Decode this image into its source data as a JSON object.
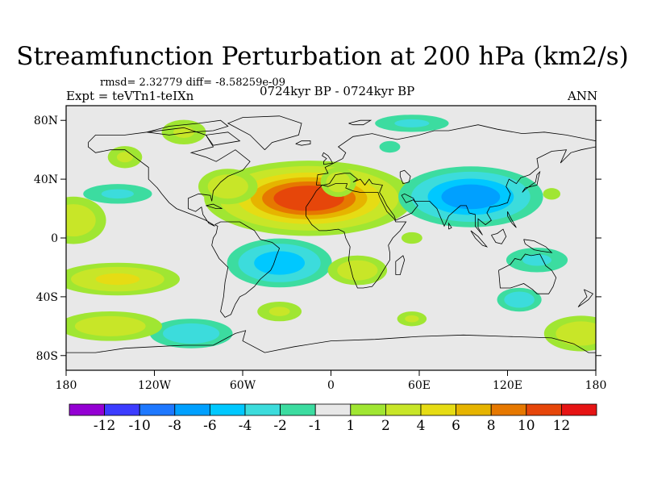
{
  "title": "Streamfunction Perturbation at 200 hPa (km2/s)",
  "stats": "rmsd= 2.32779  diff= -8.58259e-09",
  "expt": "Expt = teVTn1-teIXn",
  "period": "0724kyr BP - 0724kyr BP",
  "season": "ANN",
  "map": {
    "projection": "cylindrical equidistant",
    "lon_range": [
      -180,
      180
    ],
    "lat_range": [
      -90,
      90
    ],
    "lat_ticks": [
      {
        "value": 80,
        "label": "80N"
      },
      {
        "value": 40,
        "label": "40N"
      },
      {
        "value": 0,
        "label": "0"
      },
      {
        "value": -40,
        "label": "40S"
      },
      {
        "value": -80,
        "label": "80S"
      }
    ],
    "lon_ticks": [
      {
        "value": -180,
        "label": "180"
      },
      {
        "value": -120,
        "label": "120W"
      },
      {
        "value": -60,
        "label": "60W"
      },
      {
        "value": 0,
        "label": "0"
      },
      {
        "value": 60,
        "label": "60E"
      },
      {
        "value": 120,
        "label": "120E"
      },
      {
        "value": 180,
        "label": "180"
      }
    ],
    "background_color": "#e8e8e8",
    "features": [
      {
        "name": "anticyclone-north-atlantic",
        "lon": -15,
        "lat": 27,
        "rlon": 50,
        "rlat": 18,
        "amp": 11
      },
      {
        "name": "high-central-north-america",
        "lon": -70,
        "lat": 35,
        "rlon": 20,
        "rlat": 12,
        "amp": 3
      },
      {
        "name": "high-ne-pacific",
        "lon": -140,
        "lat": 55,
        "rlon": 14,
        "rlat": 9,
        "amp": 2
      },
      {
        "name": "high-nw-america",
        "lon": -100,
        "lat": 72,
        "rlon": 18,
        "rlat": 10,
        "amp": 2
      },
      {
        "name": "high-central-east-atlantic",
        "lon": 5,
        "lat": 38,
        "rlon": 12,
        "rlat": 10,
        "amp": 3
      },
      {
        "name": "high-east-pacific",
        "lon": -175,
        "lat": 12,
        "rlon": 22,
        "rlat": 16,
        "amp": 3
      },
      {
        "name": "low-tibet",
        "lon": 95,
        "lat": 28,
        "rlon": 38,
        "rlat": 16,
        "amp": -7
      },
      {
        "name": "low-north-pacific",
        "lon": -145,
        "lat": 30,
        "rlon": 28,
        "rlat": 8,
        "amp": -2
      },
      {
        "name": "low-arctic-asia",
        "lon": 55,
        "lat": 78,
        "rlon": 30,
        "rlat": 7,
        "amp": -2
      },
      {
        "name": "low-central-atlantic-north",
        "lon": 40,
        "lat": 62,
        "rlon": 18,
        "rlat": 10,
        "amp": -1
      },
      {
        "name": "low-south-america",
        "lon": -35,
        "lat": -17,
        "rlon": 30,
        "rlat": 14,
        "amp": -5
      },
      {
        "name": "low-south-pacific",
        "lon": -95,
        "lat": -65,
        "rlon": 28,
        "rlat": 10,
        "amp": -3
      },
      {
        "name": "low-west-pacific",
        "lon": 140,
        "lat": -15,
        "rlon": 25,
        "rlat": 10,
        "amp": -2
      },
      {
        "name": "low-australia-south",
        "lon": 128,
        "lat": -42,
        "rlon": 15,
        "rlat": 8,
        "amp": -3
      },
      {
        "name": "high-south-pacific",
        "lon": -145,
        "lat": -28,
        "rlon": 38,
        "rlat": 10,
        "amp": 4
      },
      {
        "name": "high-africa-south",
        "lon": 18,
        "lat": -22,
        "rlon": 20,
        "rlat": 10,
        "amp": 3
      },
      {
        "name": "high-se-pacific",
        "lon": -150,
        "lat": -60,
        "rlon": 35,
        "rlat": 10,
        "amp": 3
      },
      {
        "name": "high-south-atlantic",
        "lon": -35,
        "lat": -50,
        "rlon": 18,
        "rlat": 8,
        "amp": 2
      },
      {
        "name": "high-south-indian",
        "lon": 55,
        "lat": -55,
        "rlon": 12,
        "rlat": 6,
        "amp": 2
      },
      {
        "name": "high-west-pacific-north",
        "lon": 150,
        "lat": 30,
        "rlon": 15,
        "rlat": 10,
        "amp": 1
      },
      {
        "name": "high-southwest-pacific",
        "lon": 170,
        "lat": -65,
        "rlon": 25,
        "rlat": 12,
        "amp": 3
      },
      {
        "name": "high-india-ocean",
        "lon": 55,
        "lat": 0,
        "rlon": 18,
        "rlat": 10,
        "amp": 1
      }
    ]
  },
  "colorbar": {
    "colors": [
      "#9400d3",
      "#3c3cff",
      "#1e78ff",
      "#00a0ff",
      "#00c8ff",
      "#3cdcdc",
      "#3cdca0",
      "#e8e8e8",
      "#a0e632",
      "#c8e628",
      "#e6dc14",
      "#e6b400",
      "#e67800",
      "#e6460a",
      "#e61414"
    ],
    "labels": [
      "-12",
      "-10",
      "-8",
      "-6",
      "-4",
      "-2",
      "-1",
      "1",
      "2",
      "4",
      "6",
      "8",
      "10",
      "12"
    ]
  }
}
